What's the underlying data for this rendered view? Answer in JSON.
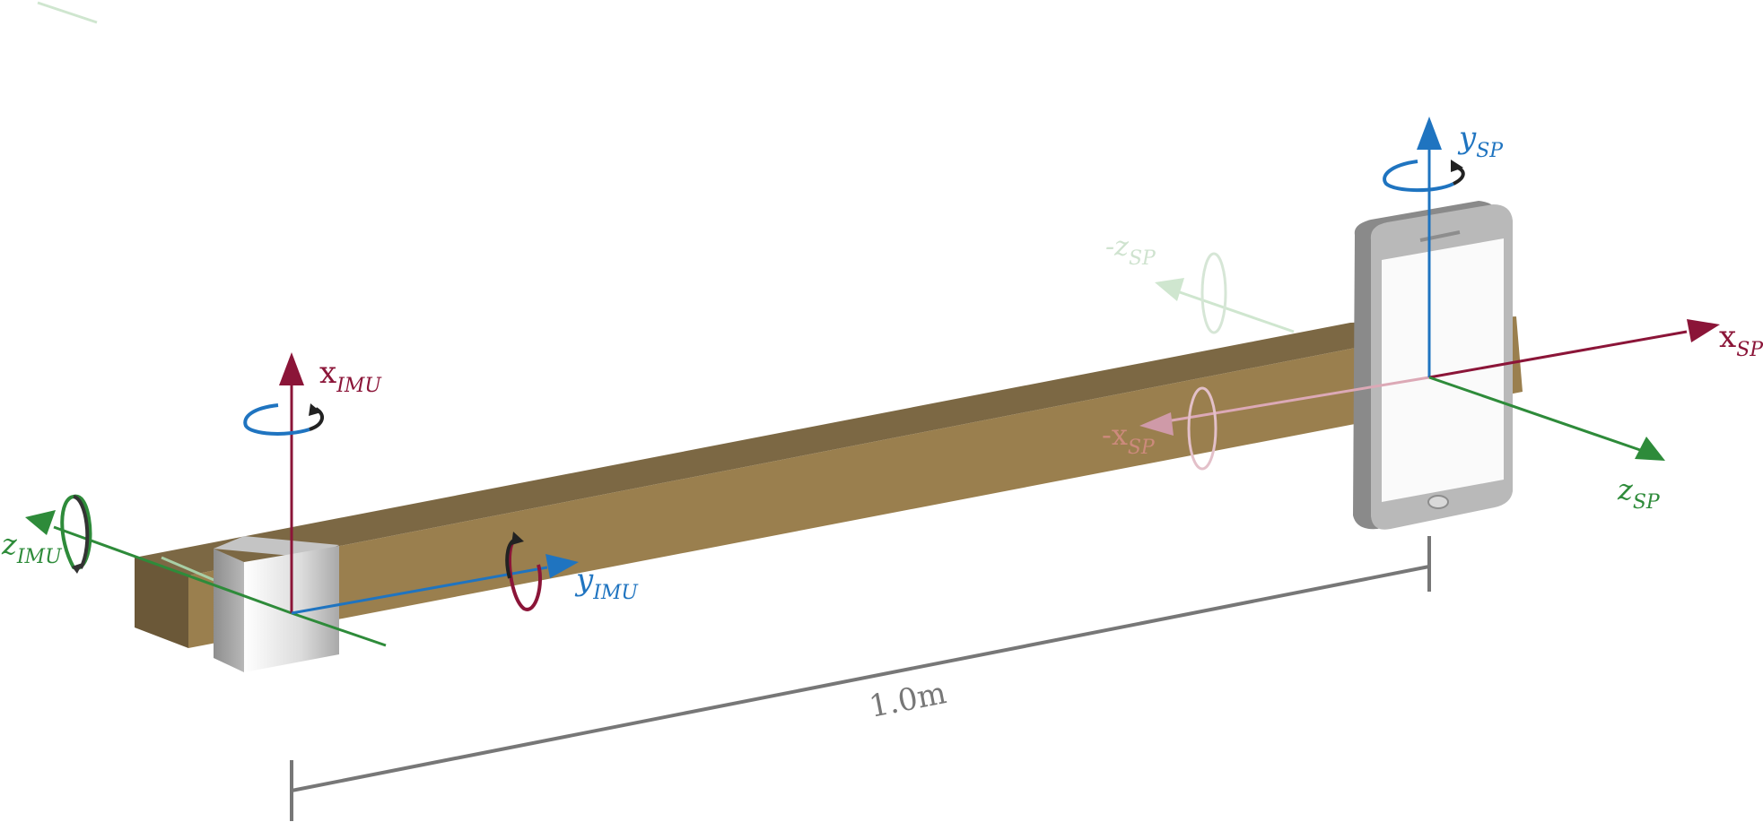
{
  "dimension": {
    "label": "1.0m"
  },
  "imu": {
    "x": {
      "base": "x",
      "sub": "IMU"
    },
    "y": {
      "base": "y",
      "sub": "IMU"
    },
    "z": {
      "base": "z",
      "sub": "IMU"
    }
  },
  "smartphone": {
    "x": {
      "base": "x",
      "sub": "SP"
    },
    "neg_x": {
      "base": "-x",
      "sub": "SP"
    },
    "y": {
      "base": "y",
      "sub": "SP"
    },
    "z": {
      "base": "z",
      "sub": "SP"
    },
    "neg_z": {
      "base": "-z",
      "sub": "SP"
    }
  },
  "colors": {
    "x_axis": "#8b1538",
    "y_axis": "#1f74c0",
    "z_axis": "#2e8b3a",
    "beam_top": "#7c6844",
    "beam_front": "#9a7f4e",
    "beam_end": "#6b5838",
    "dimension": "#777777"
  }
}
